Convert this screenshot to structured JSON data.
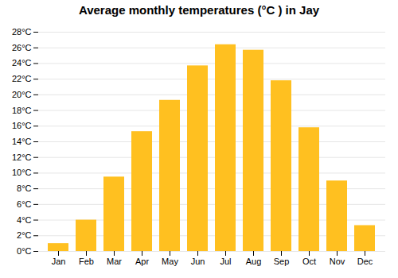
{
  "chart_data": {
    "type": "bar",
    "title": "Average monthly temperatures (°C ) in Jay",
    "categories": [
      "Jan",
      "Feb",
      "Mar",
      "Apr",
      "May",
      "Jun",
      "Jul",
      "Aug",
      "Sep",
      "Oct",
      "Nov",
      "Dec"
    ],
    "values": [
      1.0,
      4.0,
      9.5,
      15.3,
      19.3,
      23.7,
      26.4,
      25.7,
      21.8,
      15.8,
      9.0,
      3.3
    ],
    "color": "#FFC020",
    "ylim": [
      0,
      28
    ],
    "yticks": [
      {
        "value": 0,
        "label": "0°C"
      },
      {
        "value": 2,
        "label": "2°C"
      },
      {
        "value": 4,
        "label": "4°C"
      },
      {
        "value": 6,
        "label": "6°C"
      },
      {
        "value": 8,
        "label": "8°C"
      },
      {
        "value": 10,
        "label": "10°C"
      },
      {
        "value": 12,
        "label": "12°C"
      },
      {
        "value": 14,
        "label": "14°C"
      },
      {
        "value": 16,
        "label": "16°C"
      },
      {
        "value": 18,
        "label": "18°C"
      },
      {
        "value": 20,
        "label": "20°C"
      },
      {
        "value": 22,
        "label": "22°C"
      },
      {
        "value": 24,
        "label": "24°C"
      },
      {
        "value": 26,
        "label": "26°C"
      },
      {
        "value": 28,
        "label": "28°C"
      }
    ],
    "grid": true
  }
}
